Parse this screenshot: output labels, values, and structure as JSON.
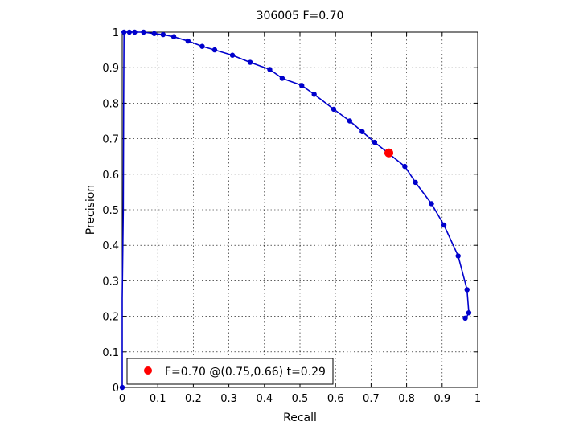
{
  "chart_data": {
    "type": "line",
    "title": "306005 F=0.70",
    "xlabel": "Recall",
    "ylabel": "Precision",
    "xlim": [
      0,
      1
    ],
    "ylim": [
      0,
      1
    ],
    "xticks": [
      "0",
      "0.1",
      "0.2",
      "0.3",
      "0.4",
      "0.5",
      "0.6",
      "0.7",
      "0.8",
      "0.9",
      "1"
    ],
    "yticks": [
      "0",
      "0.1",
      "0.2",
      "0.3",
      "0.4",
      "0.5",
      "0.6",
      "0.7",
      "0.8",
      "0.9",
      "1"
    ],
    "grid": true,
    "series": [
      {
        "color": "#0000cc",
        "line": [
          [
            0.0,
            0.0
          ],
          [
            0.0,
            0.25
          ],
          [
            0.003,
            0.5
          ],
          [
            0.004,
            0.8
          ],
          [
            0.005,
            1.0
          ],
          [
            0.02,
            1.0
          ],
          [
            0.035,
            1.0
          ],
          [
            0.06,
            1.0
          ],
          [
            0.09,
            0.996
          ],
          [
            0.115,
            0.993
          ],
          [
            0.145,
            0.987
          ],
          [
            0.185,
            0.975
          ],
          [
            0.225,
            0.96
          ],
          [
            0.26,
            0.95
          ],
          [
            0.31,
            0.935
          ],
          [
            0.36,
            0.915
          ],
          [
            0.415,
            0.895
          ],
          [
            0.45,
            0.87
          ],
          [
            0.505,
            0.85
          ],
          [
            0.54,
            0.825
          ],
          [
            0.595,
            0.783
          ],
          [
            0.64,
            0.75
          ],
          [
            0.675,
            0.72
          ],
          [
            0.71,
            0.69
          ],
          [
            0.745,
            0.662
          ],
          [
            0.795,
            0.622
          ],
          [
            0.825,
            0.577
          ],
          [
            0.87,
            0.517
          ],
          [
            0.905,
            0.457
          ],
          [
            0.945,
            0.37
          ],
          [
            0.97,
            0.275
          ],
          [
            0.975,
            0.21
          ],
          [
            0.97,
            0.2
          ],
          [
            0.965,
            0.195
          ]
        ],
        "points": [
          [
            0.0,
            0.0
          ],
          [
            0.005,
            1.0
          ],
          [
            0.02,
            1.0
          ],
          [
            0.035,
            1.0
          ],
          [
            0.06,
            1.0
          ],
          [
            0.09,
            0.996
          ],
          [
            0.115,
            0.993
          ],
          [
            0.145,
            0.987
          ],
          [
            0.185,
            0.975
          ],
          [
            0.225,
            0.96
          ],
          [
            0.26,
            0.95
          ],
          [
            0.31,
            0.935
          ],
          [
            0.36,
            0.915
          ],
          [
            0.415,
            0.895
          ],
          [
            0.45,
            0.87
          ],
          [
            0.505,
            0.85
          ],
          [
            0.54,
            0.825
          ],
          [
            0.595,
            0.783
          ],
          [
            0.64,
            0.75
          ],
          [
            0.675,
            0.72
          ],
          [
            0.71,
            0.69
          ],
          [
            0.795,
            0.622
          ],
          [
            0.825,
            0.577
          ],
          [
            0.87,
            0.517
          ],
          [
            0.905,
            0.457
          ],
          [
            0.945,
            0.37
          ],
          [
            0.97,
            0.275
          ],
          [
            0.975,
            0.21
          ],
          [
            0.965,
            0.195
          ]
        ]
      }
    ],
    "best_point": {
      "recall": 0.75,
      "precision": 0.66,
      "color": "#ff0000"
    },
    "legend": {
      "text": "F=0.70 @(0.75,0.66) t=0.29",
      "placement": "bottom-left",
      "marker_color": "#ff0000"
    }
  }
}
